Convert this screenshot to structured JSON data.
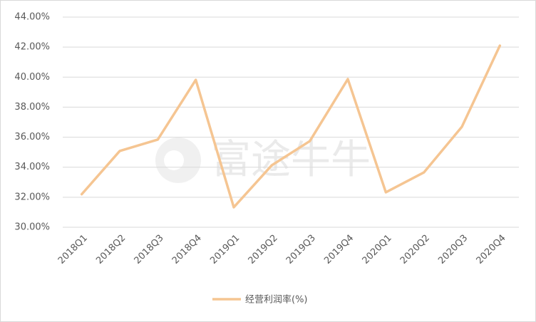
{
  "chart_data": {
    "type": "line",
    "watermark": "富途牛牛",
    "categories": [
      "2018Q1",
      "2018Q2",
      "2018Q3",
      "2018Q4",
      "2019Q1",
      "2019Q2",
      "2019Q3",
      "2019Q4",
      "2020Q1",
      "2020Q2",
      "2020Q3",
      "2020Q4"
    ],
    "series": [
      {
        "name": "经营利润率(%)",
        "color": "#f5c592",
        "values": [
          32.2,
          35.08,
          35.84,
          39.82,
          31.33,
          34.13,
          35.74,
          39.87,
          32.33,
          33.65,
          36.69,
          42.1
        ]
      }
    ],
    "ylim": [
      30,
      44
    ],
    "yticks": [
      {
        "value": 30,
        "label": "30.00%"
      },
      {
        "value": 32,
        "label": "32.00%"
      },
      {
        "value": 34,
        "label": "34.00%"
      },
      {
        "value": 36,
        "label": "36.00%"
      },
      {
        "value": 38,
        "label": "38.00%"
      },
      {
        "value": 40,
        "label": "40.00%"
      },
      {
        "value": 42,
        "label": "42.00%"
      },
      {
        "value": 44,
        "label": "44.00%"
      }
    ],
    "grid": true,
    "legend": "bottom"
  }
}
